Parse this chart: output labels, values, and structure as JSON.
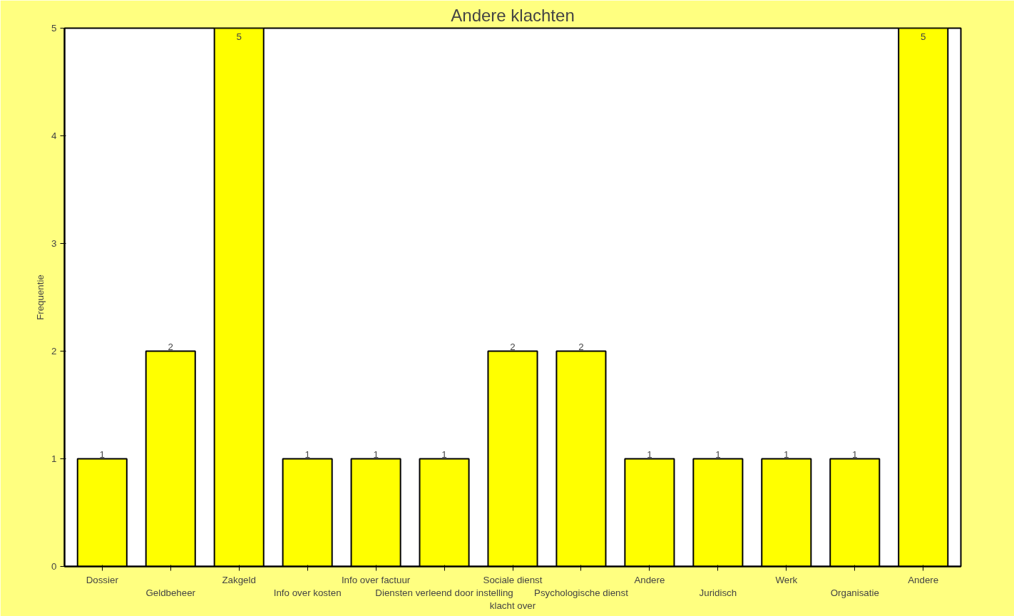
{
  "chart_data": {
    "type": "bar",
    "title": "Andere klachten",
    "xlabel": "klacht over",
    "ylabel": "Frequentie",
    "categories": [
      "Dossier",
      "Geldbeheer",
      "Zakgeld",
      "Info over kosten",
      "Info over factuur",
      "Diensten verleend door instelling",
      "Sociale dienst",
      "Psychologische dienst",
      "Andere",
      "Juridisch",
      "Werk",
      "Organisatie",
      "Andere"
    ],
    "values": [
      1,
      2,
      5,
      1,
      1,
      1,
      2,
      2,
      1,
      1,
      1,
      1,
      5
    ],
    "color": "#ffff00",
    "ylim": [
      0,
      5
    ],
    "yticks": [
      0,
      1,
      2,
      3,
      4,
      5
    ],
    "data_labels": true,
    "grid": false
  }
}
